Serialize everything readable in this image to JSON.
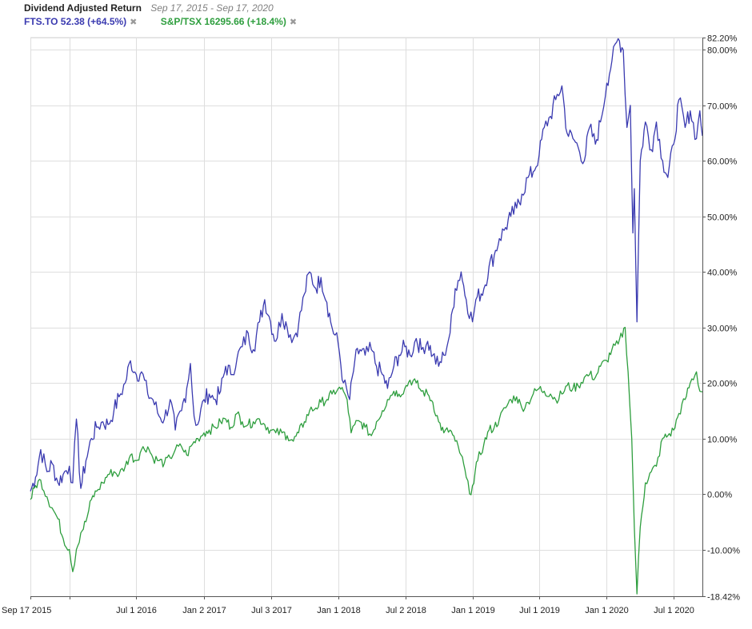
{
  "header": {
    "title": "Dividend Adjusted Return",
    "date_range": "Sep 17, 2015 - Sep 17, 2020"
  },
  "legend": [
    {
      "label": "FTS.TO 52.38 (+64.5%)",
      "color": "#3a3ab0",
      "remove_icon": "close-icon"
    },
    {
      "label": "S&P/TSX 16295.66 (+18.4%)",
      "color": "#2e9e3e",
      "remove_icon": "close-icon"
    }
  ],
  "chart_data": {
    "type": "line",
    "title": "Dividend Adjusted Return",
    "xlabel": "",
    "ylabel": "",
    "x_range": [
      "2015-09-17",
      "2020-09-17"
    ],
    "ylim": [
      -18.42,
      82.2
    ],
    "y_ticks": [
      {
        "value": 82.2,
        "label": "82.20%"
      },
      {
        "value": 80,
        "label": "80.00%"
      },
      {
        "value": 70,
        "label": "70.00%"
      },
      {
        "value": 60,
        "label": "60.00%"
      },
      {
        "value": 50,
        "label": "50.00%"
      },
      {
        "value": 40,
        "label": "40.00%"
      },
      {
        "value": 30,
        "label": "30.00%"
      },
      {
        "value": 20,
        "label": "20.00%"
      },
      {
        "value": 10,
        "label": "10.00%"
      },
      {
        "value": 0,
        "label": "0.00%"
      },
      {
        "value": -10,
        "label": "-10.00%"
      },
      {
        "value": -18.42,
        "label": "-18.42%"
      }
    ],
    "x_ticks": [
      {
        "date": "2015-09-17",
        "label": "Sep 17 2015"
      },
      {
        "date": "2016-01-01",
        "label": ""
      },
      {
        "date": "2016-07-01",
        "label": "Jul 1 2016"
      },
      {
        "date": "2017-01-02",
        "label": "Jan 2 2017"
      },
      {
        "date": "2017-07-03",
        "label": "Jul 3 2017"
      },
      {
        "date": "2018-01-01",
        "label": "Jan 1 2018"
      },
      {
        "date": "2018-07-02",
        "label": "Jul 2 2018"
      },
      {
        "date": "2019-01-01",
        "label": "Jan 1 2019"
      },
      {
        "date": "2019-07-01",
        "label": "Jul 1 2019"
      },
      {
        "date": "2020-01-01",
        "label": "Jan 1 2020"
      },
      {
        "date": "2020-07-01",
        "label": "Jul 1 2020"
      }
    ],
    "grid": true,
    "legend_position": "top-left",
    "series": [
      {
        "name": "FTS.TO 52.38 (+64.5%)",
        "color": "#3a3ab0",
        "points": [
          [
            "2015-09-17",
            0.5
          ],
          [
            "2015-10-01",
            3.0
          ],
          [
            "2015-10-15",
            8.0
          ],
          [
            "2015-11-01",
            4.0
          ],
          [
            "2015-11-15",
            5.5
          ],
          [
            "2015-12-01",
            2.0
          ],
          [
            "2015-12-15",
            3.5
          ],
          [
            "2016-01-01",
            5.0
          ],
          [
            "2016-01-10",
            2.0
          ],
          [
            "2016-01-20",
            13.5
          ],
          [
            "2016-02-01",
            1.0
          ],
          [
            "2016-02-15",
            6.0
          ],
          [
            "2016-03-01",
            10.0
          ],
          [
            "2016-03-15",
            12.0
          ],
          [
            "2016-04-01",
            13.0
          ],
          [
            "2016-04-15",
            12.5
          ],
          [
            "2016-05-01",
            15.0
          ],
          [
            "2016-05-15",
            17.5
          ],
          [
            "2016-06-01",
            20.0
          ],
          [
            "2016-06-15",
            24.0
          ],
          [
            "2016-07-01",
            21.5
          ],
          [
            "2016-07-15",
            22.0
          ],
          [
            "2016-08-01",
            18.0
          ],
          [
            "2016-08-15",
            17.0
          ],
          [
            "2016-09-01",
            14.0
          ],
          [
            "2016-09-15",
            13.5
          ],
          [
            "2016-10-01",
            17.0
          ],
          [
            "2016-10-15",
            11.5
          ],
          [
            "2016-11-01",
            15.0
          ],
          [
            "2016-11-15",
            19.0
          ],
          [
            "2016-11-25",
            23.5
          ],
          [
            "2016-12-05",
            14.0
          ],
          [
            "2016-12-15",
            12.5
          ],
          [
            "2017-01-01",
            17.0
          ],
          [
            "2017-01-15",
            18.0
          ],
          [
            "2017-02-01",
            17.0
          ],
          [
            "2017-02-15",
            18.5
          ],
          [
            "2017-03-01",
            23.0
          ],
          [
            "2017-03-15",
            21.5
          ],
          [
            "2017-04-01",
            24.5
          ],
          [
            "2017-04-15",
            26.5
          ],
          [
            "2017-05-01",
            29.0
          ],
          [
            "2017-05-15",
            26.0
          ],
          [
            "2017-06-01",
            31.0
          ],
          [
            "2017-06-15",
            35.0
          ],
          [
            "2017-07-01",
            31.0
          ],
          [
            "2017-07-15",
            27.5
          ],
          [
            "2017-08-01",
            32.5
          ],
          [
            "2017-08-15",
            30.0
          ],
          [
            "2017-09-01",
            28.0
          ],
          [
            "2017-09-15",
            30.5
          ],
          [
            "2017-10-01",
            36.0
          ],
          [
            "2017-10-15",
            40.0
          ],
          [
            "2017-11-01",
            37.0
          ],
          [
            "2017-11-15",
            39.0
          ],
          [
            "2017-12-01",
            34.5
          ],
          [
            "2017-12-15",
            30.0
          ],
          [
            "2018-01-01",
            27.0
          ],
          [
            "2018-01-15",
            20.0
          ],
          [
            "2018-02-01",
            17.0
          ],
          [
            "2018-02-15",
            24.0
          ],
          [
            "2018-03-01",
            26.0
          ],
          [
            "2018-03-15",
            25.0
          ],
          [
            "2018-04-01",
            26.0
          ],
          [
            "2018-04-15",
            23.0
          ],
          [
            "2018-05-01",
            21.5
          ],
          [
            "2018-05-15",
            19.0
          ],
          [
            "2018-06-01",
            23.0
          ],
          [
            "2018-06-15",
            25.0
          ],
          [
            "2018-07-01",
            26.5
          ],
          [
            "2018-07-15",
            25.0
          ],
          [
            "2018-08-01",
            28.0
          ],
          [
            "2018-08-15",
            26.0
          ],
          [
            "2018-09-01",
            27.5
          ],
          [
            "2018-09-15",
            25.0
          ],
          [
            "2018-10-01",
            23.0
          ],
          [
            "2018-10-15",
            25.0
          ],
          [
            "2018-11-01",
            29.0
          ],
          [
            "2018-11-15",
            37.0
          ],
          [
            "2018-12-01",
            40.0
          ],
          [
            "2018-12-15",
            35.0
          ],
          [
            "2019-01-01",
            31.0
          ],
          [
            "2019-01-10",
            35.0
          ],
          [
            "2019-02-01",
            37.0
          ],
          [
            "2019-02-15",
            41.0
          ],
          [
            "2019-03-01",
            43.0
          ],
          [
            "2019-03-15",
            46.0
          ],
          [
            "2019-04-01",
            48.0
          ],
          [
            "2019-04-15",
            50.0
          ],
          [
            "2019-05-01",
            51.5
          ],
          [
            "2019-05-15",
            54.0
          ],
          [
            "2019-06-01",
            57.0
          ],
          [
            "2019-06-15",
            58.0
          ],
          [
            "2019-07-01",
            61.0
          ],
          [
            "2019-07-15",
            66.0
          ],
          [
            "2019-08-01",
            68.0
          ],
          [
            "2019-08-15",
            71.0
          ],
          [
            "2019-09-01",
            73.5
          ],
          [
            "2019-09-15",
            65.0
          ],
          [
            "2019-10-01",
            64.0
          ],
          [
            "2019-10-15",
            62.5
          ],
          [
            "2019-11-01",
            60.0
          ],
          [
            "2019-11-15",
            66.0
          ],
          [
            "2019-12-01",
            63.0
          ],
          [
            "2019-12-15",
            67.0
          ],
          [
            "2020-01-01",
            74.0
          ],
          [
            "2020-01-15",
            78.0
          ],
          [
            "2020-02-01",
            82.0
          ],
          [
            "2020-02-15",
            80.0
          ],
          [
            "2020-02-25",
            66.0
          ],
          [
            "2020-03-05",
            70.0
          ],
          [
            "2020-03-12",
            47.0
          ],
          [
            "2020-03-16",
            55.0
          ],
          [
            "2020-03-23",
            31.0
          ],
          [
            "2020-04-01",
            60.0
          ],
          [
            "2020-04-15",
            67.0
          ],
          [
            "2020-05-01",
            62.0
          ],
          [
            "2020-05-15",
            67.0
          ],
          [
            "2020-06-01",
            60.0
          ],
          [
            "2020-06-15",
            57.0
          ],
          [
            "2020-07-01",
            63.0
          ],
          [
            "2020-07-15",
            71.0
          ],
          [
            "2020-08-01",
            66.0
          ],
          [
            "2020-08-15",
            69.0
          ],
          [
            "2020-09-01",
            64.0
          ],
          [
            "2020-09-10",
            69.0
          ],
          [
            "2020-09-17",
            64.5
          ]
        ]
      },
      {
        "name": "S&P/TSX 16295.66 (+18.4%)",
        "color": "#2e9e3e",
        "points": [
          [
            "2015-09-17",
            -1.0
          ],
          [
            "2015-10-01",
            1.5
          ],
          [
            "2015-10-15",
            2.5
          ],
          [
            "2015-11-01",
            -0.5
          ],
          [
            "2015-11-15",
            -2.5
          ],
          [
            "2015-12-01",
            -4.5
          ],
          [
            "2015-12-15",
            -8.0
          ],
          [
            "2016-01-01",
            -10.0
          ],
          [
            "2016-01-10",
            -14.0
          ],
          [
            "2016-01-20",
            -10.0
          ],
          [
            "2016-02-01",
            -7.0
          ],
          [
            "2016-02-15",
            -5.0
          ],
          [
            "2016-03-01",
            -1.0
          ],
          [
            "2016-03-15",
            0.5
          ],
          [
            "2016-04-01",
            2.0
          ],
          [
            "2016-04-15",
            3.5
          ],
          [
            "2016-05-01",
            4.0
          ],
          [
            "2016-05-15",
            3.5
          ],
          [
            "2016-06-01",
            5.0
          ],
          [
            "2016-06-15",
            7.0
          ],
          [
            "2016-07-01",
            6.0
          ],
          [
            "2016-07-15",
            8.0
          ],
          [
            "2016-08-01",
            8.5
          ],
          [
            "2016-08-15",
            6.5
          ],
          [
            "2016-09-01",
            6.0
          ],
          [
            "2016-09-15",
            5.5
          ],
          [
            "2016-10-01",
            6.5
          ],
          [
            "2016-10-15",
            8.0
          ],
          [
            "2016-11-01",
            8.5
          ],
          [
            "2016-11-15",
            7.0
          ],
          [
            "2016-12-01",
            9.0
          ],
          [
            "2016-12-15",
            10.0
          ],
          [
            "2017-01-01",
            11.0
          ],
          [
            "2017-01-15",
            11.5
          ],
          [
            "2017-02-01",
            12.0
          ],
          [
            "2017-02-15",
            13.0
          ],
          [
            "2017-03-01",
            13.5
          ],
          [
            "2017-03-15",
            12.0
          ],
          [
            "2017-04-01",
            14.5
          ],
          [
            "2017-04-15",
            13.0
          ],
          [
            "2017-05-01",
            12.5
          ],
          [
            "2017-05-15",
            13.0
          ],
          [
            "2017-06-01",
            13.5
          ],
          [
            "2017-06-15",
            12.5
          ],
          [
            "2017-07-01",
            11.5
          ],
          [
            "2017-07-15",
            11.0
          ],
          [
            "2017-08-01",
            11.0
          ],
          [
            "2017-08-15",
            10.5
          ],
          [
            "2017-09-01",
            9.5
          ],
          [
            "2017-09-15",
            11.0
          ],
          [
            "2017-10-01",
            13.0
          ],
          [
            "2017-10-15",
            15.0
          ],
          [
            "2017-11-01",
            15.5
          ],
          [
            "2017-11-15",
            16.5
          ],
          [
            "2017-12-01",
            17.0
          ],
          [
            "2017-12-15",
            18.0
          ],
          [
            "2018-01-01",
            19.0
          ],
          [
            "2018-01-15",
            18.5
          ],
          [
            "2018-01-25",
            17.0
          ],
          [
            "2018-02-05",
            11.0
          ],
          [
            "2018-02-15",
            12.5
          ],
          [
            "2018-03-01",
            13.0
          ],
          [
            "2018-03-15",
            12.0
          ],
          [
            "2018-04-01",
            10.5
          ],
          [
            "2018-04-15",
            13.0
          ],
          [
            "2018-05-01",
            15.0
          ],
          [
            "2018-05-15",
            17.0
          ],
          [
            "2018-06-01",
            18.5
          ],
          [
            "2018-06-15",
            18.0
          ],
          [
            "2018-07-01",
            19.0
          ],
          [
            "2018-07-15",
            20.5
          ],
          [
            "2018-08-01",
            20.0
          ],
          [
            "2018-08-15",
            18.5
          ],
          [
            "2018-09-01",
            18.0
          ],
          [
            "2018-09-15",
            16.5
          ],
          [
            "2018-10-01",
            13.0
          ],
          [
            "2018-10-15",
            11.0
          ],
          [
            "2018-11-01",
            11.5
          ],
          [
            "2018-11-15",
            9.5
          ],
          [
            "2018-12-01",
            7.0
          ],
          [
            "2018-12-15",
            3.0
          ],
          [
            "2018-12-24",
            0.0
          ],
          [
            "2019-01-01",
            1.5
          ],
          [
            "2019-01-15",
            6.0
          ],
          [
            "2019-02-01",
            9.0
          ],
          [
            "2019-02-15",
            11.5
          ],
          [
            "2019-03-01",
            12.0
          ],
          [
            "2019-03-15",
            13.5
          ],
          [
            "2019-04-01",
            15.5
          ],
          [
            "2019-04-15",
            17.0
          ],
          [
            "2019-05-01",
            17.5
          ],
          [
            "2019-05-15",
            15.5
          ],
          [
            "2019-06-01",
            16.5
          ],
          [
            "2019-06-15",
            18.0
          ],
          [
            "2019-07-01",
            19.0
          ],
          [
            "2019-07-15",
            18.5
          ],
          [
            "2019-08-01",
            18.0
          ],
          [
            "2019-08-15",
            17.0
          ],
          [
            "2019-09-01",
            18.0
          ],
          [
            "2019-09-15",
            19.5
          ],
          [
            "2019-10-01",
            19.0
          ],
          [
            "2019-10-15",
            19.5
          ],
          [
            "2019-11-01",
            21.0
          ],
          [
            "2019-11-15",
            21.5
          ],
          [
            "2019-12-01",
            21.0
          ],
          [
            "2019-12-15",
            23.0
          ],
          [
            "2020-01-01",
            24.0
          ],
          [
            "2020-01-15",
            26.0
          ],
          [
            "2020-02-01",
            27.0
          ],
          [
            "2020-02-20",
            30.0
          ],
          [
            "2020-02-28",
            22.0
          ],
          [
            "2020-03-09",
            10.0
          ],
          [
            "2020-03-16",
            -6.0
          ],
          [
            "2020-03-23",
            -18.0
          ],
          [
            "2020-04-01",
            -6.0
          ],
          [
            "2020-04-15",
            2.0
          ],
          [
            "2020-05-01",
            4.0
          ],
          [
            "2020-05-15",
            5.0
          ],
          [
            "2020-06-01",
            10.0
          ],
          [
            "2020-06-15",
            10.5
          ],
          [
            "2020-07-01",
            11.5
          ],
          [
            "2020-07-15",
            14.5
          ],
          [
            "2020-08-01",
            17.0
          ],
          [
            "2020-08-15",
            20.0
          ],
          [
            "2020-09-01",
            22.0
          ],
          [
            "2020-09-10",
            18.5
          ],
          [
            "2020-09-17",
            18.4
          ]
        ]
      }
    ]
  }
}
